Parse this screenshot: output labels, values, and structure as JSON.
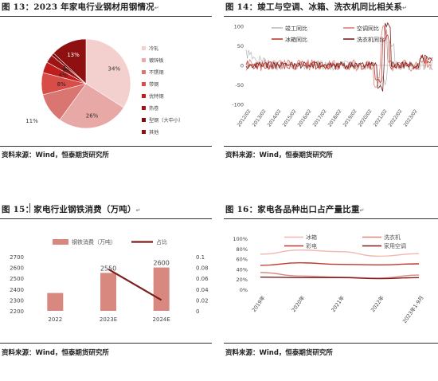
{
  "fig13": {
    "title": "图 13：2023 年家电行业钢材用钢情况",
    "source": "资料来源：Wind，恒泰期货研究所",
    "chart_data": {
      "type": "pie",
      "categories": [
        "冷轧",
        "镀锌板",
        "不锈钢",
        "带钢",
        "优特钢",
        "热卷",
        "型钢（大中小）",
        "其他"
      ],
      "values": [
        34,
        26,
        11,
        8,
        4,
        3,
        1,
        13
      ],
      "labels": [
        "34%",
        "26%",
        "11%",
        "8%",
        "4%",
        "3%",
        "1%",
        "13%"
      ],
      "colors": [
        "#f3cfcd",
        "#e8a8a6",
        "#d97672",
        "#d94d48",
        "#c21d1d",
        "#9e1313",
        "#7a0c0c",
        "#8e1010"
      ]
    }
  },
  "fig14": {
    "title": "图 14：竣工与空调、冰箱、洗衣机同比相关系",
    "source": "资料来源：Wind，恒泰期货研究所",
    "chart_data": {
      "type": "line",
      "x": [
        "2012/02",
        "2013/02",
        "2014/02",
        "2015/02",
        "2016/02",
        "2017/02",
        "2018/02",
        "2019/02",
        "2020/02",
        "2021/02",
        "2022/02",
        "2023/02"
      ],
      "ylim": [
        -100,
        100
      ],
      "yticks": [
        "100",
        "50",
        "0",
        "-50",
        "-100"
      ],
      "series": [
        {
          "name": "竣工同比",
          "color": "#bdbdbd"
        },
        {
          "name": "空调同比",
          "color": "#e07d78"
        },
        {
          "name": "冰箱同比",
          "color": "#c0392b"
        },
        {
          "name": "洗衣机同比",
          "color": "#7a1f1f"
        }
      ]
    }
  },
  "fig15": {
    "title": "图 15：家电行业钢铁消费（万吨）",
    "source": "资料来源：Wind，恒泰期货研究所",
    "chart_data": {
      "type": "bar",
      "categories": [
        "2022",
        "2023E",
        "2024E"
      ],
      "series": [
        {
          "name": "钢铁消费（万吨）",
          "values": [
            2365,
            2550,
            2600
          ],
          "color": "#d98880",
          "axis": "left"
        },
        {
          "name": "占比",
          "values": [
            null,
            0.077,
            0.02
          ],
          "color": "#7b1f1f",
          "axis": "right"
        }
      ],
      "data_labels": [
        "",
        "2550",
        "2600"
      ],
      "ylim": [
        2200,
        2700
      ],
      "yticks": [
        "2700",
        "2600",
        "2500",
        "2400",
        "2300",
        "2200"
      ],
      "y2lim": [
        0,
        0.1
      ],
      "y2ticks": [
        "0.1",
        "0.08",
        "0.06",
        "0.04",
        "0.02",
        "0"
      ]
    }
  },
  "fig16": {
    "title": "图 16：家电各品种出口占产量比重",
    "source": "资料来源：Wind，恒泰期货研究所",
    "chart_data": {
      "type": "line",
      "x": [
        "2019年",
        "2020年",
        "2021年",
        "2022年",
        "2023年1-9月"
      ],
      "ylim": [
        0,
        1
      ],
      "yticks": [
        "100%",
        "80%",
        "60%",
        "40%",
        "20%",
        "0%"
      ],
      "series": [
        {
          "name": "冰箱",
          "color": "#f0b7b3",
          "values": [
            0.69,
            0.77,
            0.74,
            0.65,
            0.7
          ]
        },
        {
          "name": "洗衣机",
          "color": "#d98880",
          "values": [
            0.33,
            0.26,
            0.24,
            0.22,
            0.28
          ]
        },
        {
          "name": "彩电",
          "color": "#c0392b",
          "values": [
            0.47,
            0.52,
            0.49,
            0.48,
            0.5
          ]
        },
        {
          "name": "家用空调",
          "color": "#7b1f1f",
          "values": [
            0.24,
            0.23,
            0.23,
            0.21,
            0.23
          ]
        }
      ]
    }
  }
}
